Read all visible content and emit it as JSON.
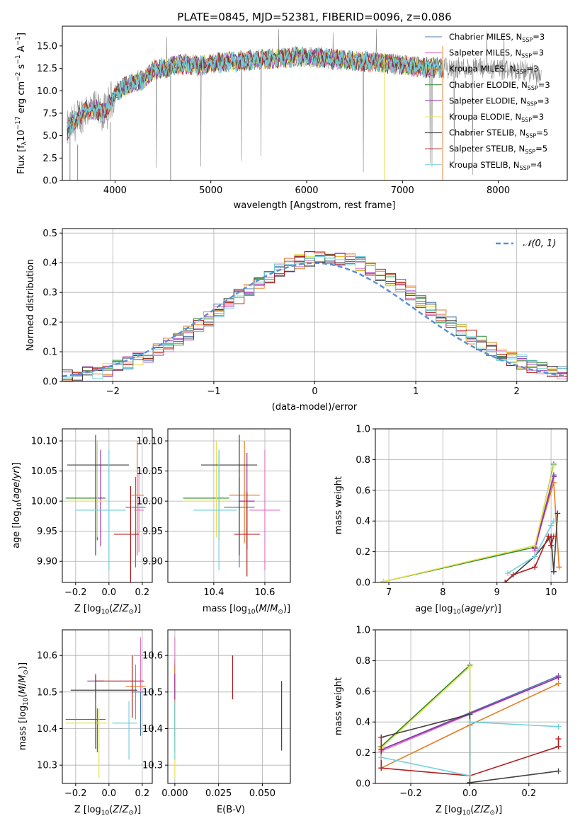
{
  "title": "PLATE=0845, MJD=52381, FIBERID=0096, z=0.086",
  "colors": [
    "#4c78a8",
    "#e377c2",
    "#e67e22",
    "#2e8b2e",
    "#9b30b0",
    "#e8e050",
    "#404040",
    "#b21d1d",
    "#70d0e0"
  ],
  "chart_data": [
    {
      "id": "spectrum",
      "type": "line",
      "xlabel": "wavelength [Angstrom, rest frame]",
      "ylabel": "Flux [f_λ 10^-17 erg cm^-2 s^-1 A^-1]",
      "xlim": [
        3450,
        8720
      ],
      "ylim": [
        0,
        17.2
      ],
      "xticks": [
        "4000",
        "5000",
        "6000",
        "7000",
        "8000"
      ],
      "yticks": [
        "0.0",
        "2.5",
        "5.0",
        "7.5",
        "10.0",
        "12.5",
        "15.0"
      ],
      "grid": false,
      "legend_position": "top-right",
      "data_envelope": {
        "x": [
          3500,
          3600,
          3700,
          3800,
          3900,
          4000,
          4100,
          4200,
          4300,
          4400,
          4500,
          4700,
          4900,
          5100,
          5300,
          5500,
          5700,
          5900,
          6100,
          6300,
          6500,
          6700,
          6900,
          7100,
          7300,
          7500,
          7700,
          7900,
          8100,
          8300,
          8450
        ],
        "y": [
          5.5,
          6.8,
          8.0,
          7.8,
          7.5,
          9.8,
          10.5,
          11.0,
          11.2,
          12.3,
          12.5,
          13.0,
          12.8,
          13.2,
          13.3,
          13.5,
          13.6,
          13.8,
          13.7,
          13.5,
          13.3,
          13.2,
          13.0,
          12.7,
          12.6,
          12.5,
          12.6,
          12.4,
          12.2,
          12.2,
          11.5
        ]
      },
      "series": [
        {
          "name": "Chabrier MILES, N_SSP=3"
        },
        {
          "name": "Salpeter MILES, N_SSP=3"
        },
        {
          "name": "Kroupa MILES, N_SSP=3"
        },
        {
          "name": "Chabrier ELODIE, N_SSP=3"
        },
        {
          "name": "Salpeter ELODIE, N_SSP=3"
        },
        {
          "name": "Kroupa ELODIE, N_SSP=3"
        },
        {
          "name": "Chabrier STELIB, N_SSP=5"
        },
        {
          "name": "Salpeter STELIB, N_SSP=5"
        },
        {
          "name": "Kroupa STELIB, N_SSP=4"
        }
      ]
    },
    {
      "id": "residuals",
      "type": "line",
      "xlabel": "(data-model)/error",
      "ylabel": "Normed distribution",
      "xlim": [
        -2.5,
        2.5
      ],
      "ylim": [
        0,
        0.515
      ],
      "xticks": [
        "−2",
        "−1",
        "0",
        "1",
        "2"
      ],
      "yticks": [
        "0.0",
        "0.1",
        "0.2",
        "0.3",
        "0.4",
        "0.5"
      ],
      "grid": true,
      "legend": "N(0,1)",
      "legend_position": "top-right",
      "bin_width": 0.1
    },
    {
      "id": "age_vs_Z",
      "type": "scatter",
      "xlabel": "Z [log10(Z/Z⊙)]",
      "ylabel": "age [log10(age/yr)]",
      "xlim": [
        -0.28,
        0.26
      ],
      "ylim": [
        9.865,
        10.12
      ],
      "xticks": [
        "−0.2",
        "0.0",
        "0.2"
      ],
      "yticks": [
        "9.90",
        "9.95",
        "10.00",
        "10.05",
        "10.10"
      ],
      "grid": true,
      "points": [
        {
          "x": 0.16,
          "y": 9.99,
          "xerr": [
            0.06,
            0.06
          ],
          "yerr": [
            0.1,
            0.05
          ]
        },
        {
          "x": 0.18,
          "y": 9.985,
          "xerr": [
            0.03,
            0.03
          ],
          "yerr": [
            0.07,
            0.06
          ]
        },
        {
          "x": 0.17,
          "y": 10.01,
          "xerr": [
            0.04,
            0.04
          ],
          "yerr": [
            0.1,
            0.09
          ]
        },
        {
          "x": -0.07,
          "y": 10.005,
          "xerr": [
            0.19,
            0.05
          ],
          "yerr": [
            0.07,
            0.09
          ]
        },
        {
          "x": -0.05,
          "y": 10.005,
          "xerr": [
            0.02,
            0.02
          ],
          "yerr": [
            0.08,
            0.08
          ]
        },
        {
          "x": -0.07,
          "y": 10.0,
          "xerr": [
            0.18,
            0.05
          ],
          "yerr": [
            0.06,
            0.1
          ]
        },
        {
          "x": -0.08,
          "y": 10.06,
          "xerr": [
            0.17,
            0.2
          ],
          "yerr": [
            0.15,
            0.05
          ]
        },
        {
          "x": 0.13,
          "y": 9.945,
          "xerr": [
            0.1,
            0.05
          ],
          "yerr": [
            0.08,
            0.08
          ]
        },
        {
          "x": 0.0,
          "y": 9.985,
          "xerr": [
            0.2,
            0.1
          ],
          "yerr": [
            0.1,
            0.1
          ]
        }
      ]
    },
    {
      "id": "age_vs_mass",
      "type": "scatter",
      "xlabel": "mass [log10(M/M⊙)]",
      "ylabel": "",
      "xlim": [
        10.22,
        10.7
      ],
      "ylim": [
        9.865,
        10.12
      ],
      "xticks": [
        "10.4",
        "10.6"
      ],
      "yticks": [
        "9.90",
        "9.95",
        "10.00",
        "10.05",
        "10.10"
      ],
      "grid": true,
      "points": [
        {
          "x": 10.5,
          "y": 9.99,
          "xerr": [
            0.06,
            0.06
          ],
          "yerr": [
            0.1,
            0.05
          ]
        },
        {
          "x": 10.6,
          "y": 9.985,
          "xerr": [
            0.06,
            0.06
          ],
          "yerr": [
            0.1,
            0.1
          ]
        },
        {
          "x": 10.52,
          "y": 10.01,
          "xerr": [
            0.06,
            0.06
          ],
          "yerr": [
            0.08,
            0.09
          ]
        },
        {
          "x": 10.42,
          "y": 10.005,
          "xerr": [
            0.14,
            0.04
          ],
          "yerr": [
            0.07,
            0.08
          ]
        },
        {
          "x": 10.53,
          "y": 10.0,
          "xerr": [
            0.03,
            0.03
          ],
          "yerr": [
            0.08,
            0.08
          ]
        },
        {
          "x": 10.41,
          "y": 10.0,
          "xerr": [
            0.13,
            0.04
          ],
          "yerr": [
            0.06,
            0.1
          ]
        },
        {
          "x": 10.5,
          "y": 10.06,
          "xerr": [
            0.15,
            0.07
          ],
          "yerr": [
            0.15,
            0.05
          ]
        },
        {
          "x": 10.53,
          "y": 9.945,
          "xerr": [
            0.05,
            0.05
          ],
          "yerr": [
            0.07,
            0.07
          ]
        },
        {
          "x": 10.42,
          "y": 9.985,
          "xerr": [
            0.1,
            0.07
          ],
          "yerr": [
            0.1,
            0.1
          ]
        }
      ]
    },
    {
      "id": "weight_vs_age",
      "type": "line",
      "xlabel": "age [log10(age/yr)]",
      "ylabel": "mass weight",
      "xlim": [
        6.75,
        10.3
      ],
      "ylim": [
        0,
        1.0
      ],
      "xticks": [
        "7",
        "8",
        "9",
        "10"
      ],
      "yticks": [
        "0.0",
        "0.2",
        "0.4",
        "0.6",
        "0.8",
        "1.0"
      ],
      "grid": true,
      "series": [
        {
          "x": [
            9.7,
            10.05
          ],
          "y": [
            0.22,
            0.7
          ]
        },
        {
          "x": [
            9.7,
            10.05
          ],
          "y": [
            0.21,
            0.69
          ]
        },
        {
          "x": [
            9.7,
            10.05,
            10.15
          ],
          "y": [
            0.23,
            0.65,
            0.1
          ]
        },
        {
          "x": [
            6.9,
            9.7,
            10.05
          ],
          "y": [
            0.005,
            0.23,
            0.77
          ]
        },
        {
          "x": [
            9.7,
            10.05
          ],
          "y": [
            0.22,
            0.69
          ]
        },
        {
          "x": [
            6.9,
            9.7,
            10.05
          ],
          "y": [
            0.005,
            0.24,
            0.76
          ]
        },
        {
          "x": [
            9.15,
            9.7,
            10.0,
            10.05,
            10.12
          ],
          "y": [
            0.0,
            0.17,
            0.3,
            0.07,
            0.45
          ]
        },
        {
          "x": [
            9.15,
            9.3,
            9.7,
            9.95,
            10.0,
            10.05
          ],
          "y": [
            0.0,
            0.05,
            0.1,
            0.3,
            0.24,
            0.3
          ]
        },
        {
          "x": [
            9.2,
            9.7,
            10.0,
            10.05
          ],
          "y": [
            0.06,
            0.17,
            0.37,
            0.4
          ]
        }
      ]
    },
    {
      "id": "mass_vs_Z",
      "type": "scatter",
      "xlabel": "Z [log10(Z/Z⊙)]",
      "ylabel": "mass [log10(M/M⊙)]",
      "xlim": [
        -0.28,
        0.26
      ],
      "ylim": [
        10.25,
        10.67
      ],
      "xticks": [
        "−0.2",
        "0.0",
        "0.2"
      ],
      "yticks": [
        "10.3",
        "10.4",
        "10.5",
        "10.6"
      ],
      "grid": true,
      "points": [
        {
          "x": 0.19,
          "y": 10.5,
          "xerr": [
            0.05,
            0.05
          ],
          "yerr": [
            0.12,
            0.09
          ]
        },
        {
          "x": 0.19,
          "y": 10.6,
          "xerr": [
            0.04,
            0.04
          ],
          "yerr": [
            0.1,
            0.05
          ]
        },
        {
          "x": 0.16,
          "y": 10.515,
          "xerr": [
            0.06,
            0.06
          ],
          "yerr": [
            0.09,
            0.06
          ]
        },
        {
          "x": -0.07,
          "y": 10.425,
          "xerr": [
            0.19,
            0.05
          ],
          "yerr": [
            0.09,
            0.03
          ]
        },
        {
          "x": -0.08,
          "y": 10.53,
          "xerr": [
            0.05,
            0.05
          ],
          "yerr": [
            0.05,
            0.02
          ]
        },
        {
          "x": -0.06,
          "y": 10.415,
          "xerr": [
            0.2,
            0.05
          ],
          "yerr": [
            0.15,
            0.04
          ]
        },
        {
          "x": -0.08,
          "y": 10.505,
          "xerr": [
            0.15,
            0.25
          ],
          "yerr": [
            0.16,
            0.04
          ]
        },
        {
          "x": 0.14,
          "y": 10.53,
          "xerr": [
            0.22,
            0.07
          ],
          "yerr": [
            0.1,
            0.07
          ]
        },
        {
          "x": 0.12,
          "y": 10.415,
          "xerr": [
            0.1,
            0.05
          ],
          "yerr": [
            0.1,
            0.06
          ]
        }
      ]
    },
    {
      "id": "mass_vs_EBV",
      "type": "scatter",
      "xlabel": "E(B-V)",
      "ylabel": "",
      "xlim": [
        -0.004,
        0.066
      ],
      "ylim": [
        10.25,
        10.67
      ],
      "xticks": [
        "0.000",
        "0.025",
        "0.050"
      ],
      "yticks": [
        "10.3",
        "10.4",
        "10.5",
        "10.6"
      ],
      "grid": true,
      "points": [
        {
          "x": 0.0,
          "y": 10.5,
          "yerr": [
            0.12,
            0.09
          ]
        },
        {
          "x": 0.0,
          "y": 10.6,
          "yerr": [
            0.1,
            0.05
          ]
        },
        {
          "x": 0.0,
          "y": 10.515,
          "yerr": [
            0.09,
            0.06
          ]
        },
        {
          "x": 0.0,
          "y": 10.425,
          "yerr": [
            0.09,
            0.03
          ]
        },
        {
          "x": 0.0,
          "y": 10.53,
          "yerr": [
            0.05,
            0.02
          ]
        },
        {
          "x": 0.0,
          "y": 10.415,
          "yerr": [
            0.15,
            0.04
          ]
        },
        {
          "x": 0.061,
          "y": 10.44,
          "yerr": [
            0.1,
            0.09
          ]
        },
        {
          "x": 0.033,
          "y": 10.54,
          "yerr": [
            0.06,
            0.06
          ]
        },
        {
          "x": 0.0,
          "y": 10.415,
          "yerr": [
            0.1,
            0.06
          ]
        }
      ]
    },
    {
      "id": "weight_vs_Z",
      "type": "line",
      "xlabel": "Z [log10(Z/Z⊙)]",
      "ylabel": "mass weight",
      "xlim": [
        -0.32,
        0.33
      ],
      "ylim": [
        0,
        1.0
      ],
      "xticks": [
        "−0.2",
        "0.0",
        "0.2"
      ],
      "yticks": [
        "0.0",
        "0.2",
        "0.4",
        "0.6",
        "0.8",
        "1.0"
      ],
      "grid": true,
      "series": [
        {
          "x": [
            -0.3,
            0.3
          ],
          "y": [
            0.22,
            0.7
          ]
        },
        {
          "x": [
            -0.3,
            0.3
          ],
          "y": [
            0.21,
            0.69
          ]
        },
        {
          "x": [
            -0.3,
            0.0,
            0.3
          ],
          "y": [
            0.1,
            0.38,
            0.65
          ]
        },
        {
          "x": [
            -0.3,
            0.0,
            0.0
          ],
          "y": [
            0.24,
            0.77,
            0.005
          ]
        },
        {
          "x": [
            -0.3,
            0.3
          ],
          "y": [
            0.22,
            0.69
          ]
        },
        {
          "x": [
            -0.3,
            0.0,
            0.0
          ],
          "y": [
            0.23,
            0.76,
            0.005
          ]
        },
        {
          "x": [
            -0.3,
            0.0,
            0.0,
            0.3
          ],
          "y": [
            0.3,
            0.45,
            0.005,
            0.08
          ]
        },
        {
          "x": [
            -0.3,
            -0.3,
            0.0,
            0.3,
            0.3
          ],
          "y": [
            0.3,
            0.1,
            0.05,
            0.24,
            0.29
          ]
        },
        {
          "x": [
            -0.3,
            0.0,
            0.0,
            0.3
          ],
          "y": [
            0.17,
            0.05,
            0.4,
            0.37
          ]
        }
      ]
    }
  ]
}
